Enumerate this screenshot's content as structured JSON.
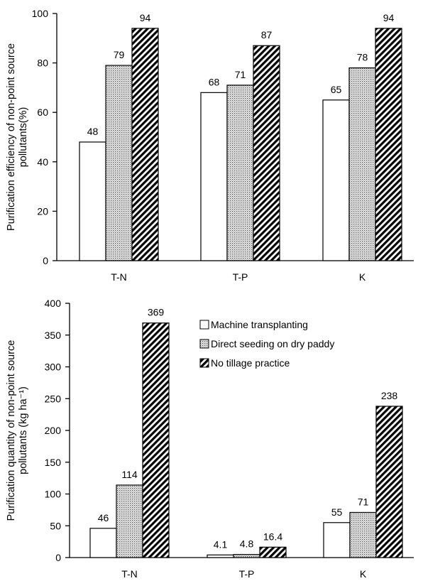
{
  "colors": {
    "series_fill": [
      "#ffffff",
      "#dcdcdc",
      "#ffffff"
    ],
    "series_pattern": [
      "none",
      "dots",
      "diagonal-hatch"
    ],
    "axis": "#000000"
  },
  "chart_data": [
    {
      "type": "bar",
      "title": "",
      "xlabel": "",
      "ylabel_lines": [
        "Purification efficiency of non-point source",
        "pollutants(%)"
      ],
      "categories": [
        "T-N",
        "T-P",
        "K"
      ],
      "ylim": [
        0,
        100
      ],
      "yticks": [
        0,
        20,
        40,
        60,
        80,
        100
      ],
      "grid": false,
      "legend": "none",
      "series": [
        {
          "values": [
            48,
            68,
            65
          ],
          "labels": [
            "48",
            "68",
            "65"
          ]
        },
        {
          "values": [
            79,
            71,
            78
          ],
          "labels": [
            "79",
            "71",
            "78"
          ]
        },
        {
          "values": [
            94,
            87,
            94
          ],
          "labels": [
            "94",
            "87",
            "94"
          ]
        }
      ]
    },
    {
      "type": "bar",
      "title": "",
      "xlabel": "",
      "ylabel_lines": [
        "Purification quantity of non-point source",
        "pollutants (kg ha⁻¹)"
      ],
      "categories": [
        "T-N",
        "T-P",
        "K"
      ],
      "ylim": [
        0,
        400
      ],
      "yticks": [
        0,
        50,
        100,
        150,
        200,
        250,
        300,
        350,
        400
      ],
      "grid": false,
      "legend": "top-right",
      "series": [
        {
          "name": "Machine transplanting",
          "values": [
            46,
            4.1,
            55
          ],
          "labels": [
            "46",
            "4.1",
            "55"
          ]
        },
        {
          "name": "Direct seeding on dry paddy",
          "values": [
            114,
            4.8,
            71
          ],
          "labels": [
            "114",
            "4.8",
            "71"
          ]
        },
        {
          "name": "No tillage practice",
          "values": [
            369,
            16.4,
            238
          ],
          "labels": [
            "369",
            "16.4",
            "238"
          ]
        }
      ]
    }
  ]
}
